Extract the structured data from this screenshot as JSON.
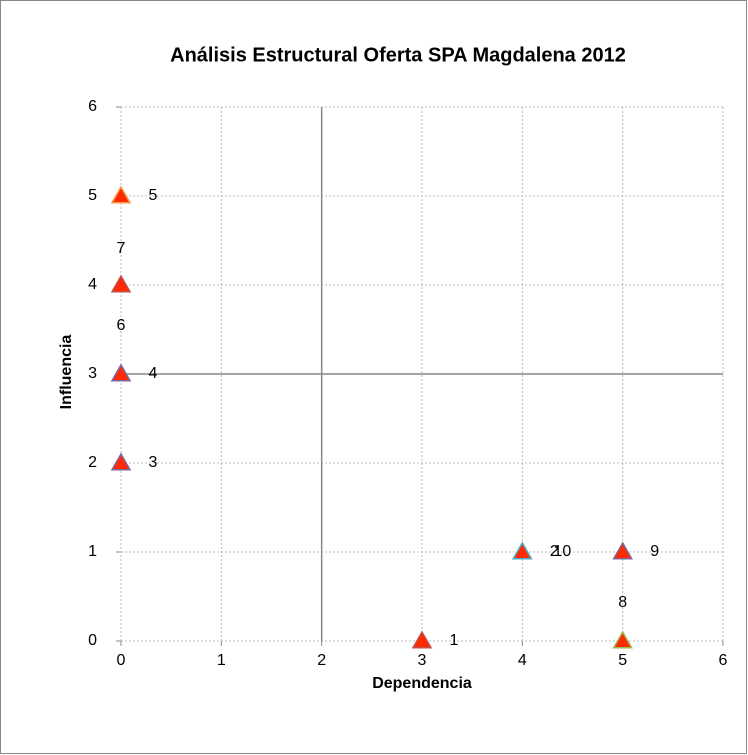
{
  "chart_data": {
    "type": "scatter",
    "title": "Análisis Estructural Oferta SPA Magdalena 2012",
    "xlabel": "Dependencia",
    "ylabel": "Influencia",
    "x": [
      3,
      4,
      0,
      0,
      0,
      0,
      0,
      5,
      5,
      4
    ],
    "values": [
      0,
      1,
      2,
      3,
      5,
      3,
      4,
      0,
      1,
      1
    ],
    "point_labels": [
      "1",
      "2",
      "3",
      "4",
      "5",
      "6",
      "7",
      "8",
      "9",
      "10"
    ],
    "color": "#ff2a00",
    "xlim": [
      0,
      6
    ],
    "ylim": [
      0,
      6
    ],
    "xticks": [
      0,
      1,
      2,
      3,
      4,
      5,
      6
    ],
    "yticks": [
      0,
      1,
      2,
      3,
      4,
      5,
      6
    ],
    "grid": true,
    "quadrant_lines": {
      "x": 2,
      "y": 3
    }
  }
}
